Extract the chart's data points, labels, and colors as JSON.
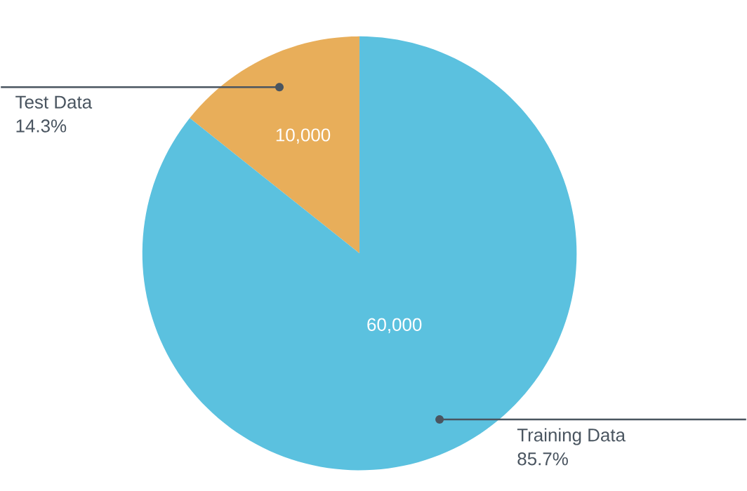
{
  "chart_data": {
    "type": "pie",
    "categories": [
      "Test Data",
      "Training Data"
    ],
    "values": [
      10000,
      60000
    ],
    "colors": [
      "#e8ae5a",
      "#5bc1df"
    ],
    "value_labels": [
      "10,000",
      "60,000"
    ],
    "annotations": [
      {
        "text": "14.3%",
        "x": "Test Data"
      },
      {
        "text": "85.7%",
        "x": "Training Data"
      }
    ]
  }
}
